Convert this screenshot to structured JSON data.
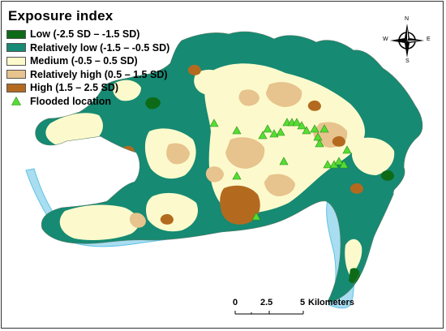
{
  "legend": {
    "title": "Exposure index",
    "items": [
      {
        "label": "Low (-2.5 SD – -1.5 SD)",
        "color": "#0d6b17"
      },
      {
        "label": "Relatively low (-1.5 – -0.5 SD)",
        "color": "#168a73"
      },
      {
        "label": "Medium (-0.5 – 0.5 SD)",
        "color": "#fcfacc"
      },
      {
        "label": "Relatively high (0.5 – 1.5 SD)",
        "color": "#e7c38d"
      },
      {
        "label": "High (1.5 – 2.5 SD)",
        "color": "#b36a1f"
      }
    ],
    "flooded": {
      "label": "Flooded location",
      "color": "#55dd33"
    }
  },
  "compass": {
    "n": "N",
    "s": "S",
    "e": "E",
    "w": "W"
  },
  "scalebar": {
    "ticks": [
      "0",
      "2.5",
      "5"
    ],
    "unit": "Kilometers"
  },
  "colors": {
    "river": "#a9ddf0",
    "river_edge": "#5cc3e8"
  }
}
